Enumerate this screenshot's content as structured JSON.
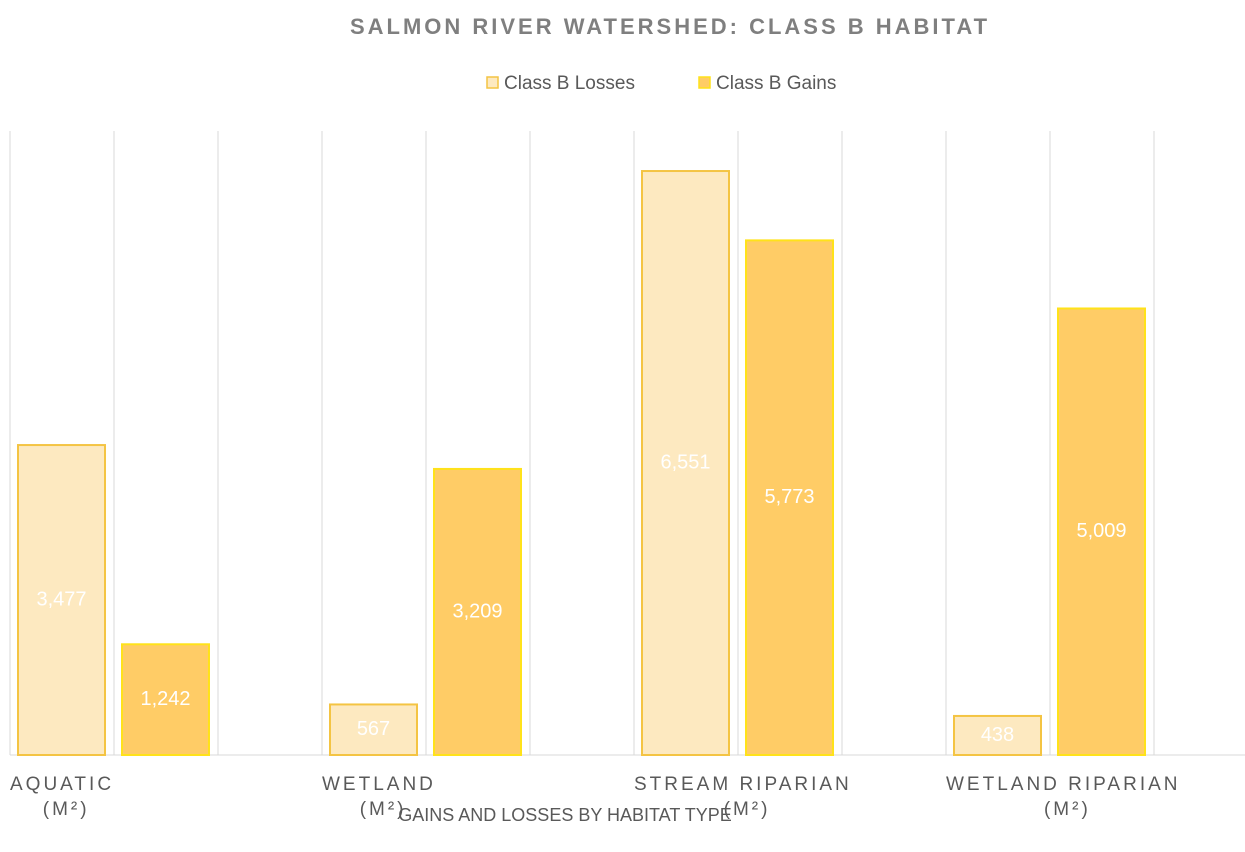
{
  "chart_data": {
    "type": "bar",
    "title": "SALMON RIVER WATERSHED: CLASS B HABITAT",
    "x_label": "GAINS AND LOSSES BY HABITAT TYPE",
    "categories": [
      "AQUATIC (M²)",
      "WETLAND (M²)",
      "STREAM RIPARIAN (M²)",
      "WETLAND RIPARIAN (M²)"
    ],
    "series": [
      {
        "name": "Class B Losses",
        "color": "#fde9c0",
        "edge_color": "#f4c443",
        "values": [
          3477,
          567,
          6551,
          438
        ],
        "value_labels": [
          "3,477",
          "567",
          "6,551",
          "438"
        ]
      },
      {
        "name": "Class B Gains",
        "color": "#ffcc66",
        "edge_color": "#ffe21a",
        "values": [
          1242,
          3209,
          5773,
          5009
        ],
        "value_labels": [
          "1,242",
          "3,209",
          "5,773",
          "5,009"
        ]
      }
    ],
    "ylim": [
      0,
      7000
    ],
    "legend": "top"
  }
}
